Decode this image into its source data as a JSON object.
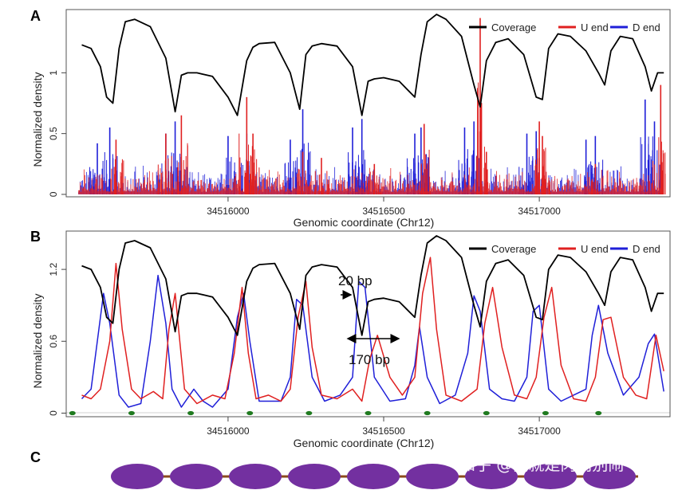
{
  "panels": {
    "A": {
      "letter": "A",
      "xlabel": "Genomic coordinate (Chr12)",
      "ylabel": "Normalized density"
    },
    "B": {
      "letter": "B",
      "xlabel": "Genomic coordinate (Chr12)",
      "ylabel": "Normalized density"
    },
    "C": {
      "letter": "C"
    }
  },
  "legend": [
    {
      "label": "Coverage",
      "color": "#000000"
    },
    {
      "label": "U end",
      "color": "#e02020"
    },
    {
      "label": "D end",
      "color": "#1f1fd8"
    }
  ],
  "annotations": {
    "spacing": "20 bp",
    "footprint": "170 bp"
  },
  "watermark": "知乎 @我就是肉肉别闹",
  "colors": {
    "coverage": "#000000",
    "u_end": "#e02020",
    "d_end": "#1f1fd8",
    "nucleosome": "#7330a0",
    "linker": "#8b4a1c",
    "dyad": "#1f7a1f"
  },
  "chart_data": [
    {
      "type": "line",
      "panel": "A",
      "xlabel": "Genomic coordinate (Chr12)",
      "ylabel": "Normalized density",
      "xlim": [
        34515480,
        34517420
      ],
      "ylim": [
        -0.02,
        1.52
      ],
      "xticks": [
        34516000,
        34516500,
        34517000
      ],
      "xtick_labels": [
        "34516000",
        "34516500",
        "34517000"
      ],
      "yticks": [
        0,
        0.5,
        1
      ],
      "ytick_labels": [
        "0",
        "0.5",
        "1"
      ],
      "legend_position": "top-right",
      "grid": false,
      "series": [
        {
          "name": "Coverage",
          "color": "#000000",
          "x": [
            34515530,
            34515560,
            34515590,
            34515610,
            34515630,
            34515650,
            34515670,
            34515700,
            34515750,
            34515800,
            34515830,
            34515850,
            34515870,
            34515900,
            34515950,
            34516000,
            34516030,
            34516060,
            34516080,
            34516100,
            34516150,
            34516200,
            34516230,
            34516250,
            34516270,
            34516300,
            34516350,
            34516400,
            34516430,
            34516450,
            34516470,
            34516500,
            34516550,
            34516600,
            34516620,
            34516640,
            34516670,
            34516700,
            34516750,
            34516790,
            34516810,
            34516830,
            34516860,
            34516900,
            34516950,
            34516990,
            34517010,
            34517030,
            34517060,
            34517100,
            34517150,
            34517190,
            34517210,
            34517230,
            34517260,
            34517300,
            34517340,
            34517360,
            34517380,
            34517400
          ],
          "values": [
            1.23,
            1.2,
            1.05,
            0.8,
            0.75,
            1.2,
            1.42,
            1.44,
            1.38,
            1.12,
            0.68,
            0.98,
            1.0,
            1.0,
            0.97,
            0.8,
            0.65,
            1.1,
            1.21,
            1.24,
            1.25,
            1.0,
            0.7,
            1.15,
            1.22,
            1.24,
            1.22,
            1.05,
            0.65,
            0.93,
            0.95,
            0.96,
            0.93,
            0.8,
            1.15,
            1.42,
            1.48,
            1.44,
            1.3,
            0.9,
            0.72,
            1.1,
            1.25,
            1.28,
            1.15,
            0.8,
            0.78,
            1.2,
            1.32,
            1.3,
            1.18,
            1.0,
            0.9,
            1.18,
            1.3,
            1.28,
            1.05,
            0.85,
            1.0,
            1.0
          ]
        },
        {
          "name": "U end",
          "color": "#e02020",
          "x": [
            34515640,
            34515800,
            34515850,
            34516060,
            34516080,
            34516240,
            34516300,
            34516470,
            34516630,
            34516810,
            34516830,
            34517000,
            34517010,
            34517180,
            34517390
          ],
          "values": [
            0.45,
            0.5,
            0.65,
            0.8,
            0.5,
            0.35,
            0.3,
            0.25,
            0.58,
            1.45,
            0.35,
            0.6,
            0.48,
            0.25,
            0.9
          ]
        },
        {
          "name": "D end",
          "color": "#1f1fd8",
          "x": [
            34515580,
            34515620,
            34515800,
            34515830,
            34516000,
            34516060,
            34516200,
            34516240,
            34516400,
            34516430,
            34516600,
            34516620,
            34516760,
            34516790,
            34516960,
            34516990,
            34517150,
            34517180,
            34517340,
            34517370
          ],
          "values": [
            0.42,
            0.55,
            0.5,
            0.6,
            0.48,
            0.5,
            0.45,
            0.7,
            0.55,
            0.62,
            0.5,
            0.55,
            0.55,
            0.6,
            0.5,
            0.52,
            0.45,
            0.48,
            0.78,
            0.6
          ]
        }
      ]
    },
    {
      "type": "line",
      "panel": "B",
      "xlabel": "Genomic coordinate (Chr12)",
      "ylabel": "Normalized density",
      "xlim": [
        34515480,
        34517420
      ],
      "ylim": [
        -0.03,
        1.52
      ],
      "xticks": [
        34516000,
        34516500,
        34517000
      ],
      "xtick_labels": [
        "34516000",
        "34516500",
        "34517000"
      ],
      "yticks": [
        0,
        0.6,
        1.2
      ],
      "ytick_labels": [
        "0",
        "0.6",
        "1.2"
      ],
      "legend_position": "top-right",
      "grid": false,
      "series": [
        {
          "name": "Coverage",
          "color": "#000000",
          "x": [
            34515530,
            34515560,
            34515590,
            34515610,
            34515630,
            34515650,
            34515670,
            34515700,
            34515750,
            34515800,
            34515830,
            34515850,
            34515870,
            34515900,
            34515950,
            34516000,
            34516030,
            34516060,
            34516080,
            34516100,
            34516150,
            34516200,
            34516230,
            34516250,
            34516270,
            34516300,
            34516350,
            34516400,
            34516430,
            34516450,
            34516470,
            34516500,
            34516550,
            34516600,
            34516620,
            34516640,
            34516670,
            34516700,
            34516750,
            34516790,
            34516810,
            34516830,
            34516860,
            34516900,
            34516950,
            34516990,
            34517010,
            34517030,
            34517060,
            34517100,
            34517150,
            34517190,
            34517210,
            34517230,
            34517260,
            34517300,
            34517340,
            34517360,
            34517380,
            34517400
          ],
          "values": [
            1.23,
            1.2,
            1.05,
            0.8,
            0.75,
            1.2,
            1.42,
            1.44,
            1.38,
            1.12,
            0.68,
            0.98,
            1.0,
            1.0,
            0.97,
            0.8,
            0.65,
            1.1,
            1.21,
            1.24,
            1.25,
            1.0,
            0.7,
            1.15,
            1.22,
            1.24,
            1.22,
            1.05,
            0.65,
            0.93,
            0.95,
            0.96,
            0.93,
            0.8,
            1.15,
            1.42,
            1.48,
            1.44,
            1.3,
            0.9,
            0.72,
            1.1,
            1.25,
            1.28,
            1.15,
            0.8,
            0.78,
            1.2,
            1.32,
            1.3,
            1.18,
            1.0,
            0.9,
            1.18,
            1.3,
            1.28,
            1.05,
            0.85,
            1.0,
            1.0
          ]
        },
        {
          "name": "U end",
          "color": "#e02020",
          "x": [
            34515530,
            34515560,
            34515590,
            34515620,
            34515640,
            34515660,
            34515690,
            34515720,
            34515760,
            34515790,
            34515810,
            34515830,
            34515845,
            34515860,
            34515900,
            34515950,
            34515990,
            34516020,
            34516045,
            34516065,
            34516090,
            34516130,
            34516170,
            34516200,
            34516225,
            34516250,
            34516270,
            34516300,
            34516350,
            34516400,
            34516430,
            34516455,
            34516480,
            34516520,
            34516560,
            34516600,
            34516625,
            34516650,
            34516670,
            34516700,
            34516750,
            34516800,
            34516825,
            34516850,
            34516880,
            34516920,
            34516960,
            34516990,
            34517015,
            34517040,
            34517070,
            34517110,
            34517150,
            34517180,
            34517205,
            34517230,
            34517270,
            34517310,
            34517345,
            34517375,
            34517400
          ],
          "values": [
            0.15,
            0.12,
            0.2,
            0.6,
            1.25,
            0.7,
            0.2,
            0.12,
            0.18,
            0.12,
            0.7,
            1.0,
            0.6,
            0.2,
            0.08,
            0.15,
            0.12,
            0.5,
            1.05,
            0.5,
            0.12,
            0.15,
            0.1,
            0.2,
            0.8,
            1.1,
            0.55,
            0.15,
            0.12,
            0.2,
            0.1,
            0.45,
            0.65,
            0.3,
            0.15,
            0.3,
            1.0,
            1.3,
            0.7,
            0.15,
            0.1,
            0.2,
            0.75,
            1.05,
            0.55,
            0.15,
            0.12,
            0.3,
            0.8,
            1.05,
            0.4,
            0.12,
            0.1,
            0.3,
            0.78,
            0.8,
            0.3,
            0.15,
            0.12,
            0.65,
            0.35
          ]
        },
        {
          "name": "D end",
          "color": "#1f1fd8",
          "x": [
            34515530,
            34515560,
            34515580,
            34515600,
            34515620,
            34515650,
            34515680,
            34515720,
            34515750,
            34515775,
            34515800,
            34515820,
            34515850,
            34515890,
            34515920,
            34515950,
            34516000,
            34516030,
            34516050,
            34516070,
            34516100,
            34516130,
            34516170,
            34516200,
            34516220,
            34516240,
            34516270,
            34516310,
            34516360,
            34516400,
            34516420,
            34516440,
            34516470,
            34516520,
            34516570,
            34516600,
            34516615,
            34516640,
            34516680,
            34516730,
            34516770,
            34516790,
            34516810,
            34516840,
            34516880,
            34516920,
            34516960,
            34516980,
            34517000,
            34517030,
            34517070,
            34517110,
            34517150,
            34517170,
            34517190,
            34517220,
            34517270,
            34517320,
            34517350,
            34517370,
            34517400
          ],
          "values": [
            0.12,
            0.2,
            0.6,
            1.0,
            0.75,
            0.15,
            0.05,
            0.08,
            0.6,
            1.15,
            0.75,
            0.2,
            0.05,
            0.2,
            0.1,
            0.05,
            0.2,
            0.8,
            1.0,
            0.6,
            0.1,
            0.1,
            0.1,
            0.3,
            0.95,
            0.9,
            0.3,
            0.1,
            0.15,
            0.3,
            1.1,
            1.05,
            0.3,
            0.1,
            0.12,
            0.4,
            0.72,
            0.3,
            0.08,
            0.15,
            0.5,
            0.98,
            0.85,
            0.2,
            0.12,
            0.1,
            0.3,
            0.85,
            0.9,
            0.2,
            0.1,
            0.15,
            0.2,
            0.65,
            0.9,
            0.5,
            0.15,
            0.3,
            0.58,
            0.66,
            0.18
          ]
        }
      ],
      "dyad_positions": [
        34515500,
        34515690,
        34515880,
        34516070,
        34516260,
        34516450,
        34516640,
        34516830,
        34517020,
        34517190
      ]
    }
  ]
}
